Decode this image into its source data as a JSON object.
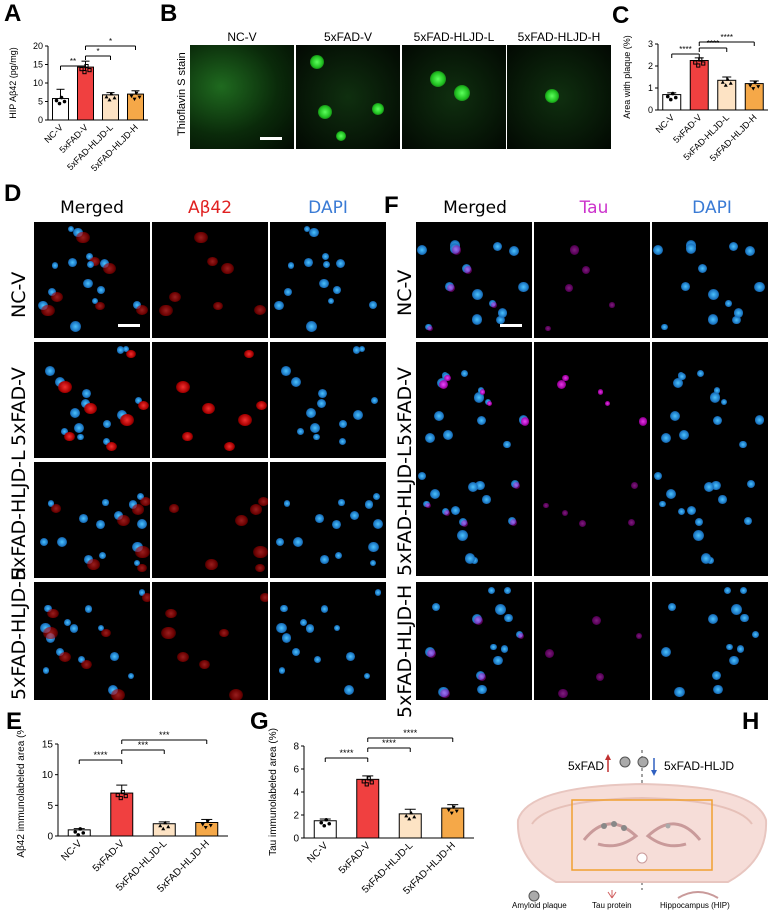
{
  "panels": {
    "A": "A",
    "B": "B",
    "C": "C",
    "D": "D",
    "E": "E",
    "F": "F",
    "G": "G",
    "H": "H"
  },
  "panel_b": {
    "y_label": "Thioflavin S stain",
    "columns": [
      "NC-V",
      "5xFAD-V",
      "5xFAD-HLJD-L",
      "5xFAD-HLJD-H"
    ]
  },
  "panel_d": {
    "columns": [
      "Merged",
      "Aβ42",
      "DAPI"
    ],
    "rows": [
      "NC-V",
      "5xFAD-V",
      "5xFAD-HLJD-L",
      "5xFAD-HLJD-H"
    ]
  },
  "panel_f": {
    "columns": [
      "Merged",
      "Tau",
      "DAPI"
    ],
    "rows": [
      "NC-V",
      "5xFAD-V",
      "5xFAD-HLJD-L",
      "5xFAD-HLJD-H"
    ]
  },
  "panel_h": {
    "left_label": "5xFAD",
    "right_label": "5xFAD-HLJD",
    "legend": [
      "Amyloid plaque",
      "Tau protein",
      "Hippocampus (HIP)"
    ]
  },
  "colors": {
    "nc": "#ffffff",
    "fad_v": "#f04040",
    "hljd_l": "#fde3c4",
    "hljd_h": "#f5a848",
    "merged_tau": "#cc33cc",
    "abeta": "#e02020",
    "dapi": "#3a7bd5"
  },
  "chart_data": [
    {
      "panel": "A",
      "type": "bar",
      "categories": [
        "NC-V",
        "5xFAD-V",
        "5xFAD-HLJD-L",
        "5xFAD-HLJD-H"
      ],
      "values": [
        5.8,
        14.3,
        6.8,
        7.0
      ],
      "errors": [
        2.5,
        1.6,
        0.6,
        0.9
      ],
      "ylabel": "HIP Aβ42 (pg/mg)",
      "ylim": [
        0,
        20
      ],
      "yticks": [
        0,
        5,
        10,
        15,
        20
      ],
      "significance": [
        {
          "from": 0,
          "to": 1,
          "label": "**"
        },
        {
          "from": 1,
          "to": 2,
          "label": "*"
        },
        {
          "from": 1,
          "to": 3,
          "label": "*"
        }
      ]
    },
    {
      "panel": "C",
      "type": "bar",
      "categories": [
        "NC-V",
        "5xFAD-V",
        "5xFAD-HLJD-L",
        "5xFAD-HLJD-H"
      ],
      "values": [
        0.7,
        2.25,
        1.35,
        1.2
      ],
      "errors": [
        0.08,
        0.12,
        0.15,
        0.12
      ],
      "ylabel": "Area with plaque (%)",
      "ylim": [
        0,
        3
      ],
      "yticks": [
        0,
        1,
        2,
        3
      ],
      "significance": [
        {
          "from": 0,
          "to": 1,
          "label": "****"
        },
        {
          "from": 1,
          "to": 2,
          "label": "****"
        },
        {
          "from": 1,
          "to": 3,
          "label": "****"
        }
      ]
    },
    {
      "panel": "E",
      "type": "bar",
      "categories": [
        "NC-V",
        "5xFAD-V",
        "5xFAD-HLJD-L",
        "5xFAD-HLJD-H"
      ],
      "values": [
        1.0,
        7.0,
        2.0,
        2.2
      ],
      "errors": [
        0.2,
        1.3,
        0.3,
        0.5
      ],
      "ylabel": "Aβ42 immunolabeled area (%)",
      "ylim": [
        0,
        15
      ],
      "yticks": [
        0,
        5,
        10,
        15
      ],
      "significance": [
        {
          "from": 0,
          "to": 1,
          "label": "****"
        },
        {
          "from": 1,
          "to": 2,
          "label": "***"
        },
        {
          "from": 1,
          "to": 3,
          "label": "***"
        }
      ]
    },
    {
      "panel": "G",
      "type": "bar",
      "categories": [
        "NC-V",
        "5xFAD-V",
        "5xFAD-HLJD-L",
        "5xFAD-HLJD-H"
      ],
      "values": [
        1.5,
        5.1,
        2.1,
        2.6
      ],
      "errors": [
        0.15,
        0.3,
        0.4,
        0.3
      ],
      "ylabel": "Tau immunolabeled area (%)",
      "ylim": [
        0,
        8
      ],
      "yticks": [
        0,
        2,
        4,
        6,
        8
      ],
      "significance": [
        {
          "from": 0,
          "to": 1,
          "label": "****"
        },
        {
          "from": 1,
          "to": 2,
          "label": "****"
        },
        {
          "from": 1,
          "to": 3,
          "label": "****"
        }
      ]
    }
  ]
}
